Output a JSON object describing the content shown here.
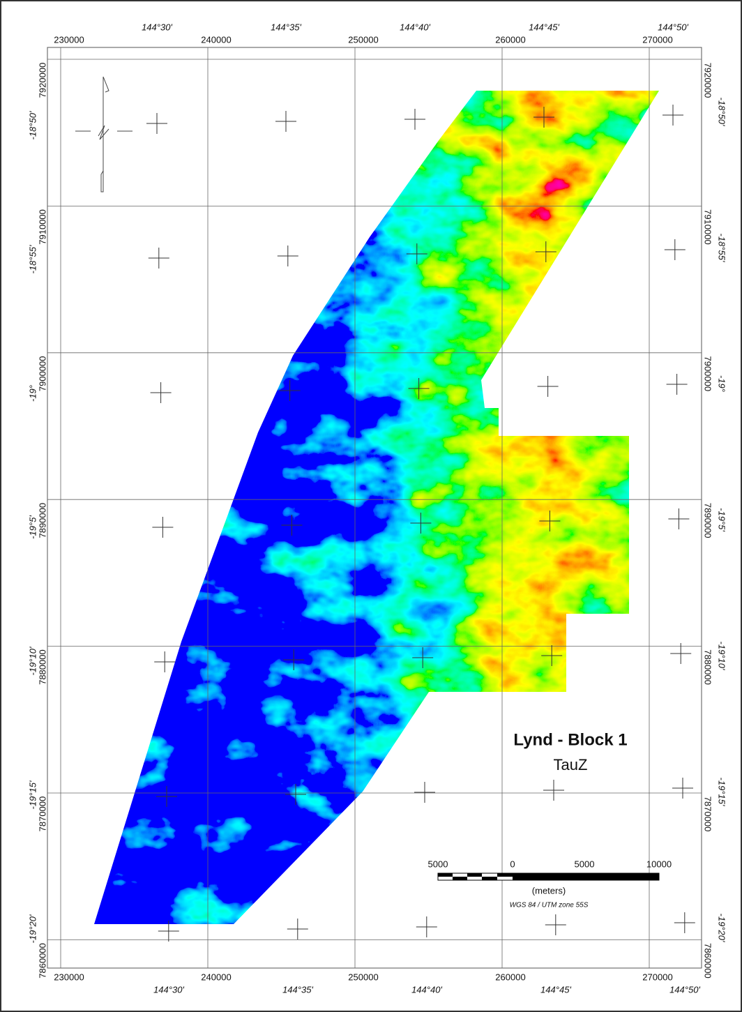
{
  "eastings": [
    "230000",
    "240000",
    "250000",
    "260000",
    "270000"
  ],
  "northings": [
    "7920000",
    "7910000",
    "7900000",
    "7890000",
    "7880000",
    "7870000",
    "7860000"
  ],
  "longitudes": [
    "144°30'",
    "144°35'",
    "144°40'",
    "144°45'",
    "144°50'"
  ],
  "latitudes": [
    "-18°50'",
    "-18°55'",
    "-19°",
    "-19°5'",
    "-19°10'",
    "-19°15'",
    "-19°20'"
  ],
  "title": "Lynd - Block 1",
  "subtitle": "TauZ",
  "scale_bar": {
    "labels": [
      "5000",
      "0",
      "5000",
      "10000"
    ],
    "unit": "(meters)",
    "projection": "WGS 84 / UTM zone 55S"
  }
}
